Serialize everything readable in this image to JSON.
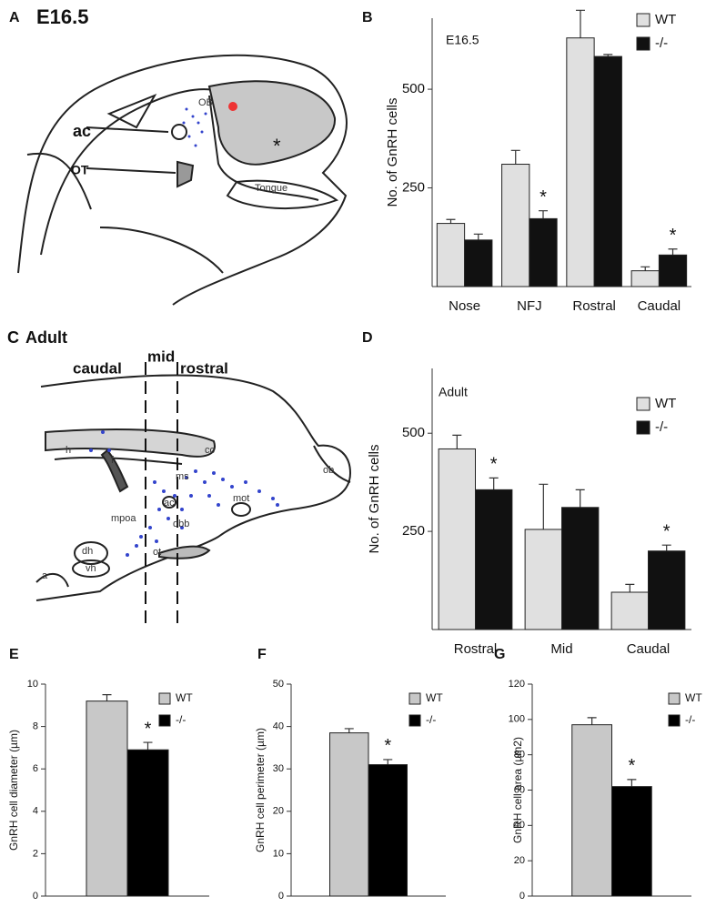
{
  "diagrams": {
    "A": {
      "label": "A",
      "title": "E16.5",
      "labels": [
        "ac",
        "OT",
        "OB",
        "Tongue",
        "*"
      ]
    },
    "C": {
      "label": "C",
      "title": "Adult",
      "labels": [
        "caudal",
        "mid",
        "rostral",
        "cc",
        "h",
        "f",
        "ms",
        "ob",
        "mpoa",
        "ac",
        "dbb",
        "mot",
        "ot",
        "dh",
        "vh",
        "a"
      ]
    }
  },
  "chart_data": [
    {
      "type": "bar",
      "panel_label": "B",
      "title": "E16.5",
      "y_label": "No. of GnRH    cells",
      "categories": [
        "Nose",
        "NFJ",
        "Rostral",
        "Caudal"
      ],
      "series": [
        {
          "name": "WT",
          "color": "#e0e0e0",
          "values": [
            160,
            310,
            630,
            40
          ],
          "errors": [
            10,
            35,
            70,
            10
          ],
          "significance": [
            null,
            null,
            null,
            null
          ]
        },
        {
          "name": "-/-",
          "color": "#111111",
          "values": [
            118,
            172,
            583,
            80
          ],
          "errors": [
            15,
            20,
            5,
            15
          ],
          "significance": [
            null,
            "*",
            null,
            "*"
          ]
        }
      ],
      "ylim": [
        0,
        680
      ],
      "yticks": [
        250,
        500
      ],
      "legend": "upper right"
    },
    {
      "type": "bar",
      "panel_label": "D",
      "title": "Adult",
      "y_label": "No. of GnRH    cells",
      "categories": [
        "Rostral",
        "Mid",
        "Caudal"
      ],
      "series": [
        {
          "name": "WT",
          "color": "#e0e0e0",
          "values": [
            460,
            255,
            95
          ],
          "errors": [
            35,
            115,
            20
          ],
          "significance": [
            null,
            null,
            null
          ]
        },
        {
          "name": "-/-",
          "color": "#111111",
          "values": [
            356,
            311,
            200
          ],
          "errors": [
            30,
            45,
            15
          ],
          "significance": [
            "*",
            null,
            "*"
          ]
        }
      ],
      "ylim": [
        0,
        665
      ],
      "yticks": [
        250,
        500
      ],
      "legend": "upper right"
    },
    {
      "type": "bar",
      "panel_label": "E",
      "y_label": "GnRH cell diameter (µm)",
      "series": [
        {
          "name": "WT",
          "color": "#c8c8c8",
          "values": [
            9.2
          ],
          "errors": [
            0.3
          ],
          "significance": [
            null
          ]
        },
        {
          "name": "-/-",
          "color": "#000000",
          "values": [
            6.9
          ],
          "errors": [
            0.35
          ],
          "significance": [
            "*"
          ]
        }
      ],
      "ylim": [
        0,
        10
      ],
      "yticks": [
        0,
        2,
        4,
        6,
        8,
        10
      ],
      "legend": "upper right"
    },
    {
      "type": "bar",
      "panel_label": "F",
      "y_label": "GnRH cell perimeter (µm)",
      "series": [
        {
          "name": "WT",
          "color": "#c8c8c8",
          "values": [
            38.5
          ],
          "errors": [
            1
          ],
          "significance": [
            null
          ]
        },
        {
          "name": "-/-",
          "color": "#000000",
          "values": [
            31
          ],
          "errors": [
            1.2
          ],
          "significance": [
            "*"
          ]
        }
      ],
      "ylim": [
        0,
        50
      ],
      "yticks": [
        0,
        10,
        20,
        30,
        40,
        50
      ],
      "legend": "upper right"
    },
    {
      "type": "bar",
      "panel_label": "G",
      "y_label": "GnRH cell area (µm2)",
      "series": [
        {
          "name": "WT",
          "color": "#c8c8c8",
          "values": [
            97
          ],
          "errors": [
            4
          ],
          "significance": [
            null
          ]
        },
        {
          "name": "-/-",
          "color": "#000000",
          "values": [
            62
          ],
          "errors": [
            4
          ],
          "significance": [
            "*"
          ]
        }
      ],
      "ylim": [
        0,
        120
      ],
      "yticks": [
        0,
        20,
        40,
        60,
        80,
        100,
        120
      ],
      "legend": "upper right"
    }
  ]
}
